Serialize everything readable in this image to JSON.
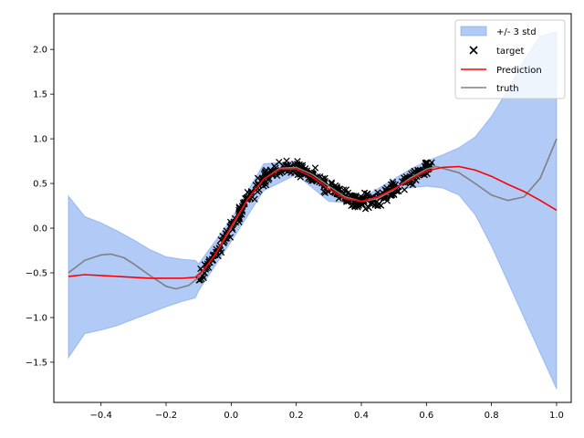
{
  "chart_data": {
    "type": "line",
    "title": "",
    "xlabel": "",
    "ylabel": "",
    "xlim": [
      -0.545,
      1.045
    ],
    "ylim": [
      -1.95,
      2.4
    ],
    "xticks": [
      "−0.4",
      "−0.2",
      "0.0",
      "0.2",
      "0.4",
      "0.6",
      "0.8",
      "1.0"
    ],
    "xtick_values": [
      -0.4,
      -0.2,
      0.0,
      0.2,
      0.4,
      0.6,
      0.8,
      1.0
    ],
    "yticks": [
      "−1.5",
      "−1.0",
      "−0.5",
      "0.0",
      "0.5",
      "1.0",
      "1.5",
      "2.0"
    ],
    "ytick_values": [
      -1.5,
      -1.0,
      -0.5,
      0.0,
      0.5,
      1.0,
      1.5,
      2.0
    ],
    "grid": false,
    "legend_position": "top-right",
    "colors": {
      "band": "#6495ed",
      "target": "#000000",
      "prediction": "#ff0000",
      "truth": "#808080"
    },
    "legend": [
      "+/- 3 std",
      "target",
      "Prediction",
      "truth"
    ],
    "band": {
      "name": "+/- 3 std",
      "x": [
        -0.5,
        -0.45,
        -0.4,
        -0.35,
        -0.3,
        -0.25,
        -0.2,
        -0.15,
        -0.11,
        -0.1,
        0.0,
        0.1,
        0.2,
        0.3,
        0.4,
        0.5,
        0.55,
        0.6,
        0.65,
        0.7,
        0.75,
        0.8,
        0.85,
        0.9,
        0.95,
        1.0
      ],
      "upper": [
        0.36,
        0.13,
        0.06,
        -0.03,
        -0.13,
        -0.24,
        -0.32,
        -0.35,
        -0.36,
        -0.4,
        0.1,
        0.72,
        0.75,
        0.38,
        0.33,
        0.55,
        0.66,
        0.75,
        0.82,
        0.9,
        1.02,
        1.25,
        1.55,
        1.88,
        2.15,
        2.2
      ],
      "lower": [
        -1.45,
        -1.18,
        -1.14,
        -1.09,
        -1.02,
        -0.95,
        -0.88,
        -0.82,
        -0.78,
        -0.7,
        -0.15,
        0.42,
        0.6,
        0.3,
        0.27,
        0.42,
        0.45,
        0.47,
        0.45,
        0.37,
        0.15,
        -0.2,
        -0.6,
        -1.0,
        -1.4,
        -1.8
      ]
    },
    "prediction": {
      "name": "Prediction",
      "x": [
        -0.5,
        -0.45,
        -0.4,
        -0.35,
        -0.3,
        -0.25,
        -0.2,
        -0.15,
        -0.11,
        -0.08,
        -0.05,
        0.0,
        0.05,
        0.1,
        0.15,
        0.2,
        0.25,
        0.3,
        0.35,
        0.4,
        0.45,
        0.5,
        0.55,
        0.6,
        0.65,
        0.7,
        0.75,
        0.8,
        0.85,
        0.9,
        0.95,
        1.0
      ],
      "y": [
        -0.54,
        -0.52,
        -0.53,
        -0.54,
        -0.55,
        -0.56,
        -0.56,
        -0.56,
        -0.55,
        -0.45,
        -0.3,
        0.02,
        0.32,
        0.55,
        0.66,
        0.66,
        0.57,
        0.44,
        0.33,
        0.3,
        0.35,
        0.44,
        0.54,
        0.64,
        0.68,
        0.69,
        0.65,
        0.58,
        0.49,
        0.41,
        0.31,
        0.2
      ]
    },
    "truth": {
      "name": "truth",
      "x": [
        -0.5,
        -0.45,
        -0.4,
        -0.37,
        -0.33,
        -0.3,
        -0.25,
        -0.2,
        -0.17,
        -0.13,
        -0.1,
        -0.05,
        0.0,
        0.05,
        0.1,
        0.15,
        0.2,
        0.25,
        0.3,
        0.35,
        0.4,
        0.45,
        0.5,
        0.55,
        0.6,
        0.63,
        0.7,
        0.75,
        0.8,
        0.85,
        0.9,
        0.95,
        1.0
      ],
      "y": [
        -0.5,
        -0.36,
        -0.3,
        -0.29,
        -0.33,
        -0.4,
        -0.53,
        -0.65,
        -0.68,
        -0.64,
        -0.55,
        -0.3,
        0.0,
        0.32,
        0.55,
        0.67,
        0.68,
        0.6,
        0.47,
        0.35,
        0.3,
        0.33,
        0.43,
        0.56,
        0.66,
        0.69,
        0.62,
        0.5,
        0.37,
        0.31,
        0.35,
        0.56,
        1.0
      ]
    },
    "target": {
      "name": "target",
      "x_range": [
        -0.1,
        0.62
      ],
      "noise": 0.05,
      "count": 420
    }
  }
}
